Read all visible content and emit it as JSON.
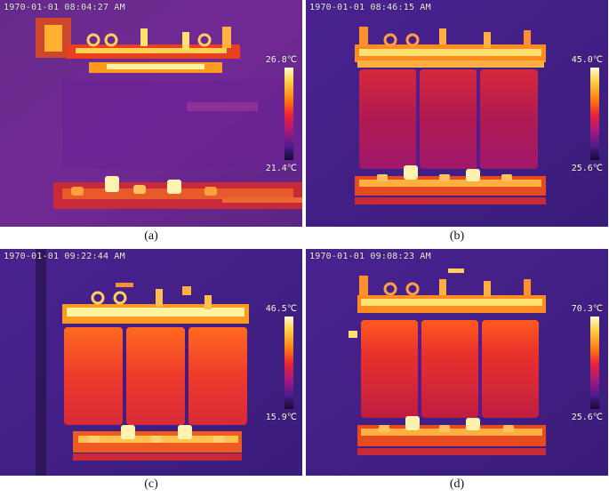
{
  "panels": [
    {
      "id": "a",
      "timestamp": "1970-01-01 08:04:27 AM",
      "temp_max": "26.8℃",
      "temp_min": "21.4℃",
      "caption": "(a)"
    },
    {
      "id": "b",
      "timestamp": "1970-01-01 08:46:15 AM",
      "temp_max": "45.0℃",
      "temp_min": "25.6℃",
      "caption": "(b)"
    },
    {
      "id": "c",
      "timestamp": "1970-01-01 09:22:44 AM",
      "temp_max": "46.5℃",
      "temp_min": "15.9℃",
      "caption": "(c)"
    },
    {
      "id": "d",
      "timestamp": "1970-01-01 09:08:23 AM",
      "temp_max": "70.3℃",
      "temp_min": "25.6℃",
      "caption": "(d)"
    }
  ]
}
